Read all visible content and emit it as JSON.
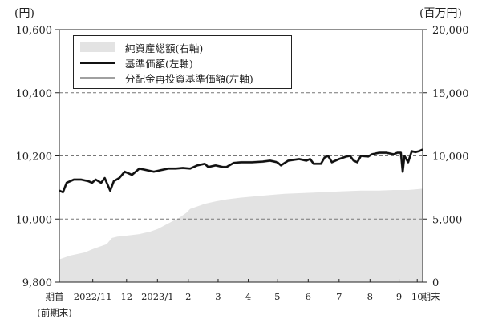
{
  "units": {
    "left": "(円)",
    "right": "(百万円)"
  },
  "legend": {
    "net_assets": "純資産総額(右軸)",
    "nav": "基準価額(左軸)",
    "nav_reinvested": "分配金再投資基準価額(左軸)"
  },
  "colors": {
    "area": "#e3e3e3",
    "nav": "#111111",
    "nav_reinvested": "#a0a0a0",
    "grid": "#777777"
  },
  "chart_data": {
    "type": "line",
    "left_axis": {
      "range": [
        9800,
        10600
      ],
      "ticks": [
        "9,800",
        "10,000",
        "10,200",
        "10,400",
        "10,600"
      ],
      "tick_values": [
        9800,
        10000,
        10200,
        10400,
        10600
      ]
    },
    "right_axis": {
      "range": [
        0,
        20000
      ],
      "ticks": [
        "0",
        "5,000",
        "10,000",
        "15,000",
        "20,000"
      ],
      "tick_values": [
        0,
        5000,
        10000,
        15000,
        20000
      ]
    },
    "x_labels": [
      {
        "t": 0.0,
        "label": "期首",
        "sub": "(前期末)"
      },
      {
        "t": 0.092,
        "label": "2022/11"
      },
      {
        "t": 0.185,
        "label": "12"
      },
      {
        "t": 0.27,
        "label": "2023/1"
      },
      {
        "t": 0.355,
        "label": "2"
      },
      {
        "t": 0.437,
        "label": "3"
      },
      {
        "t": 0.52,
        "label": "4"
      },
      {
        "t": 0.6,
        "label": "5"
      },
      {
        "t": 0.685,
        "label": "6"
      },
      {
        "t": 0.77,
        "label": "7"
      },
      {
        "t": 0.855,
        "label": "8"
      },
      {
        "t": 0.935,
        "label": "9"
      },
      {
        "t": 0.985,
        "label": "10"
      },
      {
        "t": 1.02,
        "label": "期末"
      }
    ],
    "grid_dashed_at_left": [
      10000,
      10200,
      10400
    ],
    "series": [
      {
        "name": "純資産総額(右軸)",
        "axis": "right",
        "kind": "area",
        "points": [
          [
            0,
            1800
          ],
          [
            0.03,
            2100
          ],
          [
            0.07,
            2350
          ],
          [
            0.09,
            2600
          ],
          [
            0.11,
            2800
          ],
          [
            0.13,
            3000
          ],
          [
            0.145,
            3500
          ],
          [
            0.16,
            3600
          ],
          [
            0.19,
            3700
          ],
          [
            0.22,
            3800
          ],
          [
            0.25,
            4000
          ],
          [
            0.27,
            4200
          ],
          [
            0.29,
            4500
          ],
          [
            0.31,
            4800
          ],
          [
            0.33,
            5100
          ],
          [
            0.35,
            5500
          ],
          [
            0.36,
            5800
          ],
          [
            0.38,
            6000
          ],
          [
            0.4,
            6200
          ],
          [
            0.43,
            6400
          ],
          [
            0.46,
            6550
          ],
          [
            0.5,
            6700
          ],
          [
            0.54,
            6800
          ],
          [
            0.58,
            6900
          ],
          [
            0.62,
            7000
          ],
          [
            0.66,
            7050
          ],
          [
            0.7,
            7100
          ],
          [
            0.74,
            7150
          ],
          [
            0.78,
            7200
          ],
          [
            0.83,
            7250
          ],
          [
            0.88,
            7250
          ],
          [
            0.92,
            7300
          ],
          [
            0.96,
            7300
          ],
          [
            0.98,
            7350
          ],
          [
            1.0,
            7400
          ]
        ]
      },
      {
        "name": "分配金再投資基準価額(左軸)",
        "axis": "left",
        "kind": "line",
        "hidden_under": "nav",
        "points": [
          [
            0,
            10090
          ],
          [
            0.01,
            10085
          ],
          [
            0.02,
            10115
          ],
          [
            0.04,
            10125
          ],
          [
            0.06,
            10125
          ],
          [
            0.08,
            10120
          ],
          [
            0.09,
            10115
          ],
          [
            0.1,
            10125
          ],
          [
            0.115,
            10115
          ],
          [
            0.125,
            10130
          ],
          [
            0.14,
            10090
          ],
          [
            0.15,
            10120
          ],
          [
            0.165,
            10130
          ],
          [
            0.18,
            10150
          ],
          [
            0.2,
            10140
          ],
          [
            0.22,
            10160
          ],
          [
            0.24,
            10155
          ],
          [
            0.26,
            10150
          ],
          [
            0.28,
            10155
          ],
          [
            0.3,
            10160
          ],
          [
            0.32,
            10160
          ],
          [
            0.34,
            10162
          ],
          [
            0.36,
            10160
          ],
          [
            0.38,
            10170
          ],
          [
            0.4,
            10175
          ],
          [
            0.41,
            10165
          ],
          [
            0.43,
            10170
          ],
          [
            0.45,
            10165
          ],
          [
            0.46,
            10165
          ],
          [
            0.48,
            10178
          ],
          [
            0.5,
            10180
          ],
          [
            0.53,
            10180
          ],
          [
            0.56,
            10182
          ],
          [
            0.58,
            10185
          ],
          [
            0.6,
            10180
          ],
          [
            0.61,
            10170
          ],
          [
            0.63,
            10185
          ],
          [
            0.66,
            10190
          ],
          [
            0.68,
            10185
          ],
          [
            0.69,
            10190
          ],
          [
            0.7,
            10175
          ],
          [
            0.72,
            10175
          ],
          [
            0.73,
            10195
          ],
          [
            0.74,
            10200
          ],
          [
            0.75,
            10180
          ],
          [
            0.77,
            10190
          ],
          [
            0.79,
            10198
          ],
          [
            0.8,
            10200
          ],
          [
            0.81,
            10185
          ],
          [
            0.82,
            10180
          ],
          [
            0.83,
            10200
          ],
          [
            0.85,
            10198
          ],
          [
            0.86,
            10205
          ],
          [
            0.88,
            10210
          ],
          [
            0.9,
            10210
          ],
          [
            0.92,
            10205
          ],
          [
            0.93,
            10210
          ],
          [
            0.94,
            10210
          ],
          [
            0.945,
            10150
          ],
          [
            0.95,
            10200
          ],
          [
            0.96,
            10180
          ],
          [
            0.97,
            10215
          ],
          [
            0.98,
            10212
          ],
          [
            0.99,
            10215
          ],
          [
            1.0,
            10220
          ]
        ]
      },
      {
        "name": "基準価額(左軸)",
        "axis": "left",
        "kind": "line",
        "points": [
          [
            0,
            10090
          ],
          [
            0.01,
            10085
          ],
          [
            0.02,
            10115
          ],
          [
            0.04,
            10125
          ],
          [
            0.06,
            10125
          ],
          [
            0.08,
            10120
          ],
          [
            0.09,
            10115
          ],
          [
            0.1,
            10125
          ],
          [
            0.115,
            10115
          ],
          [
            0.125,
            10130
          ],
          [
            0.14,
            10090
          ],
          [
            0.15,
            10120
          ],
          [
            0.165,
            10130
          ],
          [
            0.18,
            10150
          ],
          [
            0.2,
            10140
          ],
          [
            0.22,
            10160
          ],
          [
            0.24,
            10155
          ],
          [
            0.26,
            10150
          ],
          [
            0.28,
            10155
          ],
          [
            0.3,
            10160
          ],
          [
            0.32,
            10160
          ],
          [
            0.34,
            10162
          ],
          [
            0.36,
            10160
          ],
          [
            0.38,
            10170
          ],
          [
            0.4,
            10175
          ],
          [
            0.41,
            10165
          ],
          [
            0.43,
            10170
          ],
          [
            0.45,
            10165
          ],
          [
            0.46,
            10165
          ],
          [
            0.48,
            10178
          ],
          [
            0.5,
            10180
          ],
          [
            0.53,
            10180
          ],
          [
            0.56,
            10182
          ],
          [
            0.58,
            10185
          ],
          [
            0.6,
            10180
          ],
          [
            0.61,
            10170
          ],
          [
            0.63,
            10185
          ],
          [
            0.66,
            10190
          ],
          [
            0.68,
            10185
          ],
          [
            0.69,
            10190
          ],
          [
            0.7,
            10175
          ],
          [
            0.72,
            10175
          ],
          [
            0.73,
            10195
          ],
          [
            0.74,
            10200
          ],
          [
            0.75,
            10180
          ],
          [
            0.77,
            10190
          ],
          [
            0.79,
            10198
          ],
          [
            0.8,
            10200
          ],
          [
            0.81,
            10185
          ],
          [
            0.82,
            10180
          ],
          [
            0.83,
            10200
          ],
          [
            0.85,
            10198
          ],
          [
            0.86,
            10205
          ],
          [
            0.88,
            10210
          ],
          [
            0.9,
            10210
          ],
          [
            0.92,
            10205
          ],
          [
            0.93,
            10210
          ],
          [
            0.94,
            10210
          ],
          [
            0.945,
            10150
          ],
          [
            0.95,
            10200
          ],
          [
            0.96,
            10180
          ],
          [
            0.97,
            10215
          ],
          [
            0.98,
            10212
          ],
          [
            0.99,
            10215
          ],
          [
            1.0,
            10220
          ]
        ]
      }
    ]
  }
}
